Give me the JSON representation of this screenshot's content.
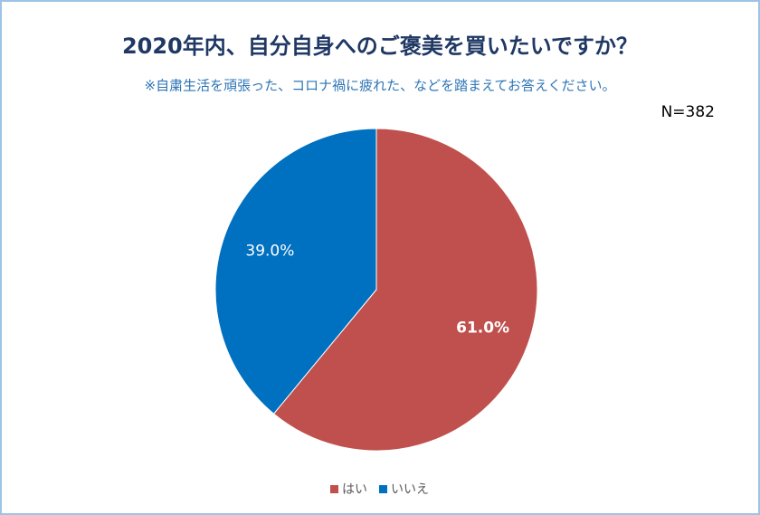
{
  "chart_data": {
    "type": "pie",
    "title": "2020年内、自分自身へのご褒美を買いたいですか？",
    "subtitle": "※自粛生活を頑張った、コロナ禍に疲れた、などを踏まえてお答えください。",
    "annotation": "N=382",
    "categories": [
      "はい",
      "いいえ"
    ],
    "values": [
      61.0,
      39.0
    ],
    "value_labels": [
      "61.0%",
      "39.0%"
    ],
    "colors": [
      "#c0504d",
      "#0070c0"
    ],
    "legend": "bottom"
  }
}
